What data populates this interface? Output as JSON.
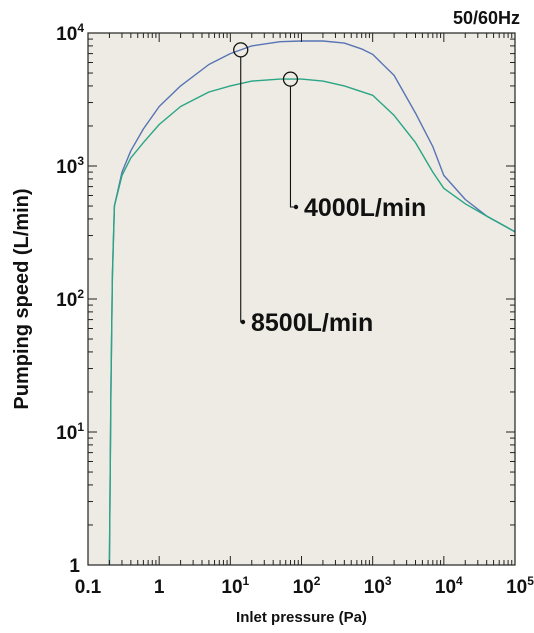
{
  "chart_data": {
    "type": "line",
    "title": "50/60Hz",
    "xlabel": "Inlet pressure (Pa)",
    "ylabel": "Pumping speed (L/min)",
    "xscale": "log",
    "yscale": "log",
    "xlim": [
      0.1,
      100000
    ],
    "ylim": [
      1,
      10000
    ],
    "grid": false,
    "background": "#edebe4",
    "xticks": [
      {
        "value": 0.1,
        "label": "0.1"
      },
      {
        "value": 1,
        "label": "1"
      },
      {
        "value": 10,
        "base": "10",
        "exp": "1"
      },
      {
        "value": 100,
        "base": "10",
        "exp": "2"
      },
      {
        "value": 1000,
        "base": "10",
        "exp": "3"
      },
      {
        "value": 10000,
        "base": "10",
        "exp": "4"
      },
      {
        "value": 100000,
        "base": "10",
        "exp": "5"
      }
    ],
    "yticks": [
      {
        "value": 1,
        "label": "1"
      },
      {
        "value": 10,
        "base": "10",
        "exp": "1"
      },
      {
        "value": 100,
        "base": "10",
        "exp": "2"
      },
      {
        "value": 1000,
        "base": "10",
        "exp": "3"
      },
      {
        "value": 10000,
        "base": "10",
        "exp": "4"
      }
    ],
    "series": [
      {
        "name": "8500L/min",
        "color": "#5874b4",
        "points": [
          [
            0.2,
            1
          ],
          [
            0.21,
            20
          ],
          [
            0.22,
            150
          ],
          [
            0.235,
            500
          ],
          [
            0.3,
            900
          ],
          [
            0.4,
            1300
          ],
          [
            0.6,
            1900
          ],
          [
            1,
            2800
          ],
          [
            2,
            4000
          ],
          [
            5,
            5800
          ],
          [
            10,
            7000
          ],
          [
            20,
            8000
          ],
          [
            50,
            8600
          ],
          [
            100,
            8700
          ],
          [
            200,
            8700
          ],
          [
            400,
            8400
          ],
          [
            700,
            7600
          ],
          [
            1000,
            6900
          ],
          [
            2000,
            4800
          ],
          [
            4000,
            2500
          ],
          [
            7000,
            1400
          ],
          [
            10000,
            850
          ],
          [
            20000,
            560
          ],
          [
            40000,
            420
          ],
          [
            100000,
            320
          ]
        ]
      },
      {
        "name": "4000L/min",
        "color": "#2aa585",
        "points": [
          [
            0.2,
            1
          ],
          [
            0.21,
            20
          ],
          [
            0.22,
            150
          ],
          [
            0.235,
            500
          ],
          [
            0.3,
            850
          ],
          [
            0.4,
            1150
          ],
          [
            0.6,
            1500
          ],
          [
            1,
            2050
          ],
          [
            2,
            2800
          ],
          [
            5,
            3600
          ],
          [
            10,
            4000
          ],
          [
            20,
            4350
          ],
          [
            50,
            4500
          ],
          [
            100,
            4500
          ],
          [
            200,
            4350
          ],
          [
            400,
            4000
          ],
          [
            1000,
            3400
          ],
          [
            2000,
            2400
          ],
          [
            4000,
            1500
          ],
          [
            7000,
            900
          ],
          [
            10000,
            680
          ],
          [
            20000,
            520
          ],
          [
            40000,
            420
          ],
          [
            100000,
            320
          ]
        ]
      }
    ],
    "annotations": [
      {
        "label": "4000L/min",
        "series": "4000L/min",
        "at_x": 70
      },
      {
        "label": "8500L/min",
        "series": "8500L/min",
        "at_x": 14
      }
    ]
  }
}
